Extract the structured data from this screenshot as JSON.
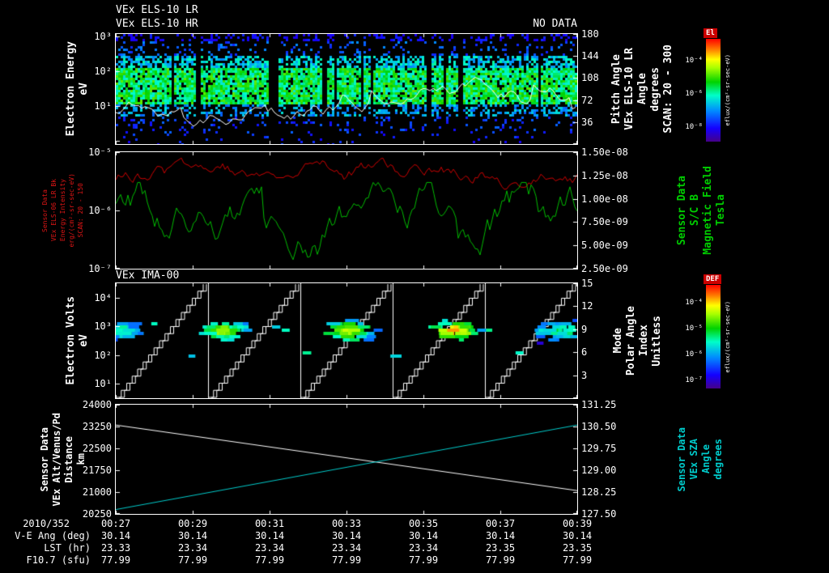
{
  "header": {
    "title_line1": "VEx ELS-10 LR",
    "title_line2": "VEx ELS-10 HR",
    "no_data": "NO DATA"
  },
  "panels": {
    "p1": {
      "left_label_cols": [
        "Electron Energy",
        "eV"
      ],
      "yticks": [
        "10³",
        "10²",
        "10¹"
      ],
      "right_ticks": [
        "180",
        "144",
        "108",
        "72",
        "36"
      ],
      "right_label_cols": [
        "Pitch Angle",
        "VEx ELS-10 LR",
        "Angle",
        "degrees",
        "SCAN: 20 - 300"
      ],
      "colorbar": {
        "tag": "El",
        "ticks": [
          "10⁻⁴",
          "10⁻⁶",
          "10⁻⁸"
        ],
        "units": "eflux/(cm²-sr-sec-eV)"
      }
    },
    "p2": {
      "left_label_cols": [
        "Sensor Data",
        "VEx ELS-06 LR Bk",
        "Energy Intensity",
        "erg/(cm²-sr-sec-eV)",
        "SCAN: 20 - 150"
      ],
      "yticks": [
        "10⁻⁵",
        "10⁻⁶",
        "10⁻⁷"
      ],
      "right_ticks": [
        "1.50e-08",
        "1.25e-08",
        "1.00e-08",
        "7.50e-09",
        "5.00e-09",
        "2.50e-09"
      ],
      "right_label_cols": [
        "Sensor Data",
        "S/C B",
        "Magnetic Field",
        "Tesla"
      ]
    },
    "p3": {
      "title": "VEx IMA-00",
      "left_label_cols": [
        "Electron Volts",
        "eV"
      ],
      "yticks": [
        "10⁴",
        "10³",
        "10²",
        "10¹"
      ],
      "right_ticks": [
        "15",
        "12",
        "9",
        "6",
        "3"
      ],
      "right_label_cols": [
        "Mode",
        "Polar Angle",
        "Index",
        "Unitless"
      ],
      "colorbar": {
        "tag": "DEF",
        "ticks": [
          "10⁻⁴",
          "10⁻⁵",
          "10⁻⁶",
          "10⁻⁷"
        ],
        "units": "eflux/(cm²-sr-sec-eV)"
      }
    },
    "p4": {
      "left_label_cols": [
        "Sensor Data",
        "VEx Alt/Venus/Pd",
        "Distance",
        "km"
      ],
      "yticks": [
        "24000",
        "23250",
        "22500",
        "21750",
        "21000",
        "20250"
      ],
      "right_ticks": [
        "131.25",
        "130.50",
        "129.75",
        "129.00",
        "128.25",
        "127.50"
      ],
      "right_label_cols": [
        "Sensor Data",
        "VEx SZA",
        "Angle",
        "degrees"
      ]
    }
  },
  "time_axis": {
    "date": "2010/352",
    "ticks": [
      "00:27",
      "00:29",
      "00:31",
      "00:33",
      "00:35",
      "00:37",
      "00:39"
    ]
  },
  "bottom_rows": [
    {
      "label": "V-E Ang (deg)",
      "values": [
        "30.14",
        "30.14",
        "30.14",
        "30.14",
        "30.14",
        "30.14",
        "30.14"
      ]
    },
    {
      "label": "LST (hr)",
      "values": [
        "23.33",
        "23.34",
        "23.34",
        "23.34",
        "23.34",
        "23.35",
        "23.35"
      ]
    },
    {
      "label": "F10.7 (sfu)",
      "values": [
        "77.99",
        "77.99",
        "77.99",
        "77.99",
        "77.99",
        "77.99",
        "77.99"
      ]
    }
  ],
  "colors": {
    "background": "#000000",
    "axis": "#ffffff",
    "els_intensity_series": "#cc0000",
    "magnetic_field_series": "#00bb00",
    "distance_series": "#ffffff",
    "sza_series": "#00cccc",
    "colorbar_tag_bg": "#cc0000"
  },
  "chart_data": [
    {
      "panel": "electron_energy_spectrogram",
      "type": "heatmap",
      "title": "VEx ELS-10 LR / VEx ELS-10 HR",
      "status": "NO DATA",
      "x": {
        "start": "00:27",
        "end": "00:39",
        "ticks": [
          "00:27",
          "00:29",
          "00:31",
          "00:33",
          "00:35",
          "00:37",
          "00:39"
        ]
      },
      "y": {
        "label": "Electron Energy (eV)",
        "scale": "log",
        "tick_values": [
          1000,
          100,
          10
        ]
      },
      "y2": {
        "label": "Pitch Angle VEx ELS-10 LR Angle (degrees) SCAN: 20 - 300",
        "tick_values": [
          180,
          144,
          108,
          72,
          36
        ],
        "range": [
          0,
          180
        ]
      },
      "colorbar": {
        "label": "El",
        "units": "eflux/(cm2-sr-sec-eV)",
        "scale": "log",
        "tick_values": [
          0.0001,
          1e-06,
          1e-08
        ]
      },
      "content_summary": "Dense blue/green electron flux band between roughly 15 and 600 eV across the whole interval, sparse dark-blue speckle above and below, occasional vertical data gaps, and a white pitch-angle trace wandering through the lower half",
      "seed": 1234
    },
    {
      "panel": "els_intensity_and_magnetic_field",
      "type": "line",
      "y": {
        "scale": "log",
        "range": [
          1e-07,
          1e-05
        ],
        "tick_values": [
          1e-05,
          1e-06,
          1e-07
        ]
      },
      "y2": {
        "range": [
          2.5e-09,
          1.5e-08
        ],
        "tick_values": [
          1.5e-08,
          1.25e-08,
          1e-08,
          7.5e-09,
          5e-09,
          2.5e-09
        ]
      },
      "series": [
        {
          "name": "VEx ELS-06 LR Bk Energy Intensity erg/(cm2-sr-sec-eV)",
          "color": "#cc0000",
          "behavior": "noisy, mostly 2e-6 to 6e-6 with brief dips"
        },
        {
          "name": "S/C B Magnetic Field (Tesla)",
          "color": "#00bb00",
          "behavior": "strongly fluctuating between about 3e-9 and 1.1e-8 with deep dips"
        }
      ],
      "seed": 77
    },
    {
      "panel": "ima_ion_spectrogram",
      "type": "heatmap",
      "title": "VEx IMA-00",
      "y": {
        "label": "Electron Volts (eV)",
        "scale": "log",
        "tick_values": [
          10000,
          1000,
          100,
          10
        ]
      },
      "y2": {
        "label": "Mode Polar Angle Index (Unitless)",
        "tick_values": [
          15,
          12,
          9,
          6,
          3
        ],
        "range": [
          0,
          15
        ]
      },
      "colorbar": {
        "label": "DEF",
        "units": "eflux/(cm2-sr-sec-eV)",
        "scale": "log",
        "tick_values": [
          0.0001,
          1e-05,
          1e-06,
          1e-07
        ]
      },
      "scan_segments": 5,
      "blob_centers_frac": [
        0.012,
        0.235,
        0.5,
        0.735,
        0.96
      ],
      "blob_intensity": [
        0.55,
        0.8,
        0.9,
        1.0,
        0.6
      ],
      "content_summary": "Repeating white polar-angle-index staircases, one per scan, with bright ion flux patches near 100-1000 eV in each scan (strongest in the fourth scan)",
      "seed": 4242
    },
    {
      "panel": "altitude_and_sza",
      "type": "line",
      "series": [
        {
          "name": "VEx Alt/Venus/Pd Distance (km)",
          "color": "#ffffff",
          "start_value": 23300,
          "end_value": 21050,
          "axis_range": [
            20250,
            24000
          ]
        },
        {
          "name": "VEx SZA Angle (degrees)",
          "color": "#00cccc",
          "start_value": 127.65,
          "end_value": 130.55,
          "axis_range": [
            127.5,
            131.25
          ]
        }
      ],
      "y": {
        "tick_values": [
          24000,
          23250,
          22500,
          21750,
          21000,
          20250
        ]
      },
      "y2": {
        "tick_values": [
          131.25,
          130.5,
          129.75,
          129.0,
          128.25,
          127.5
        ]
      }
    }
  ]
}
